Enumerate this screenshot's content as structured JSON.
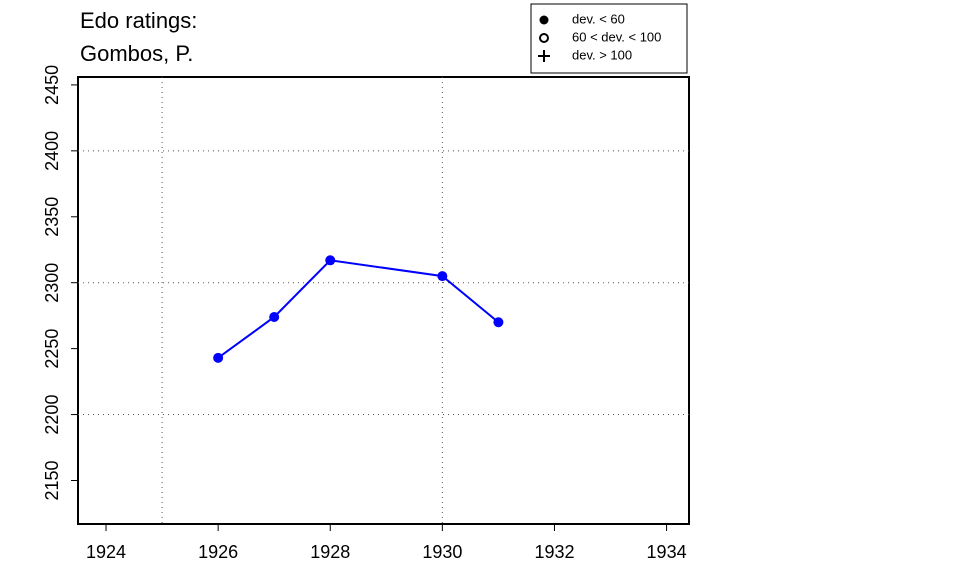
{
  "chart_data": {
    "type": "line",
    "title": [
      "Edo ratings:",
      "Gombos, P."
    ],
    "x": [
      1926,
      1927,
      1928,
      1930,
      1931
    ],
    "series": [
      {
        "name": "Gombos, P.",
        "color": "#0000ff",
        "values": [
          2243,
          2274,
          2317,
          2305,
          2270
        ]
      }
    ],
    "xlim": [
      1923.5,
      1934.4
    ],
    "ylim": [
      2117,
      2456
    ],
    "xticks": [
      1924,
      1926,
      1928,
      1930,
      1932,
      1934
    ],
    "yticks": [
      2150,
      2200,
      2250,
      2300,
      2350,
      2400,
      2450
    ],
    "xgrid": [
      1925,
      1930
    ],
    "ygrid": [
      2200,
      2300,
      2400
    ],
    "legend": {
      "position": "top-right",
      "items": [
        {
          "label": "dev. < 60",
          "marker": "filled-circle"
        },
        {
          "label": "60 < dev. < 100",
          "marker": "open-circle"
        },
        {
          "label": "dev. > 100",
          "marker": "plus"
        }
      ]
    }
  }
}
